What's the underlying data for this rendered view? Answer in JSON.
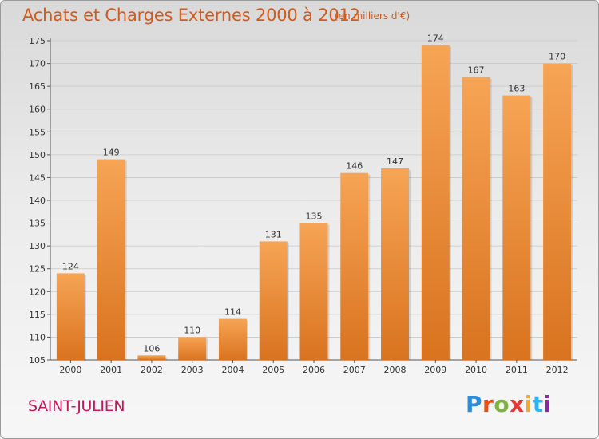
{
  "header": {
    "title": "Achats et Charges Externes 2000 à 2012",
    "unit_note": "(en milliers d'€)"
  },
  "footer": {
    "commune": "SAINT-JULIEN",
    "brand": "Proxiti"
  },
  "colors": {
    "bar_top": "#f6a455",
    "bar_bottom": "#d9731f",
    "title": "#d45a1c",
    "commune": "#c2185b"
  },
  "chart_data": {
    "type": "bar",
    "categories": [
      "2000",
      "2001",
      "2002",
      "2003",
      "2004",
      "2005",
      "2006",
      "2007",
      "2008",
      "2009",
      "2010",
      "2011",
      "2012"
    ],
    "values": [
      124,
      149,
      106,
      110,
      114,
      131,
      135,
      146,
      147,
      174,
      167,
      163,
      170
    ],
    "ylim": [
      105,
      175
    ],
    "yticks": [
      105,
      110,
      115,
      120,
      125,
      130,
      135,
      140,
      145,
      150,
      155,
      160,
      165,
      170,
      175
    ],
    "grid": true,
    "legend": "none"
  }
}
